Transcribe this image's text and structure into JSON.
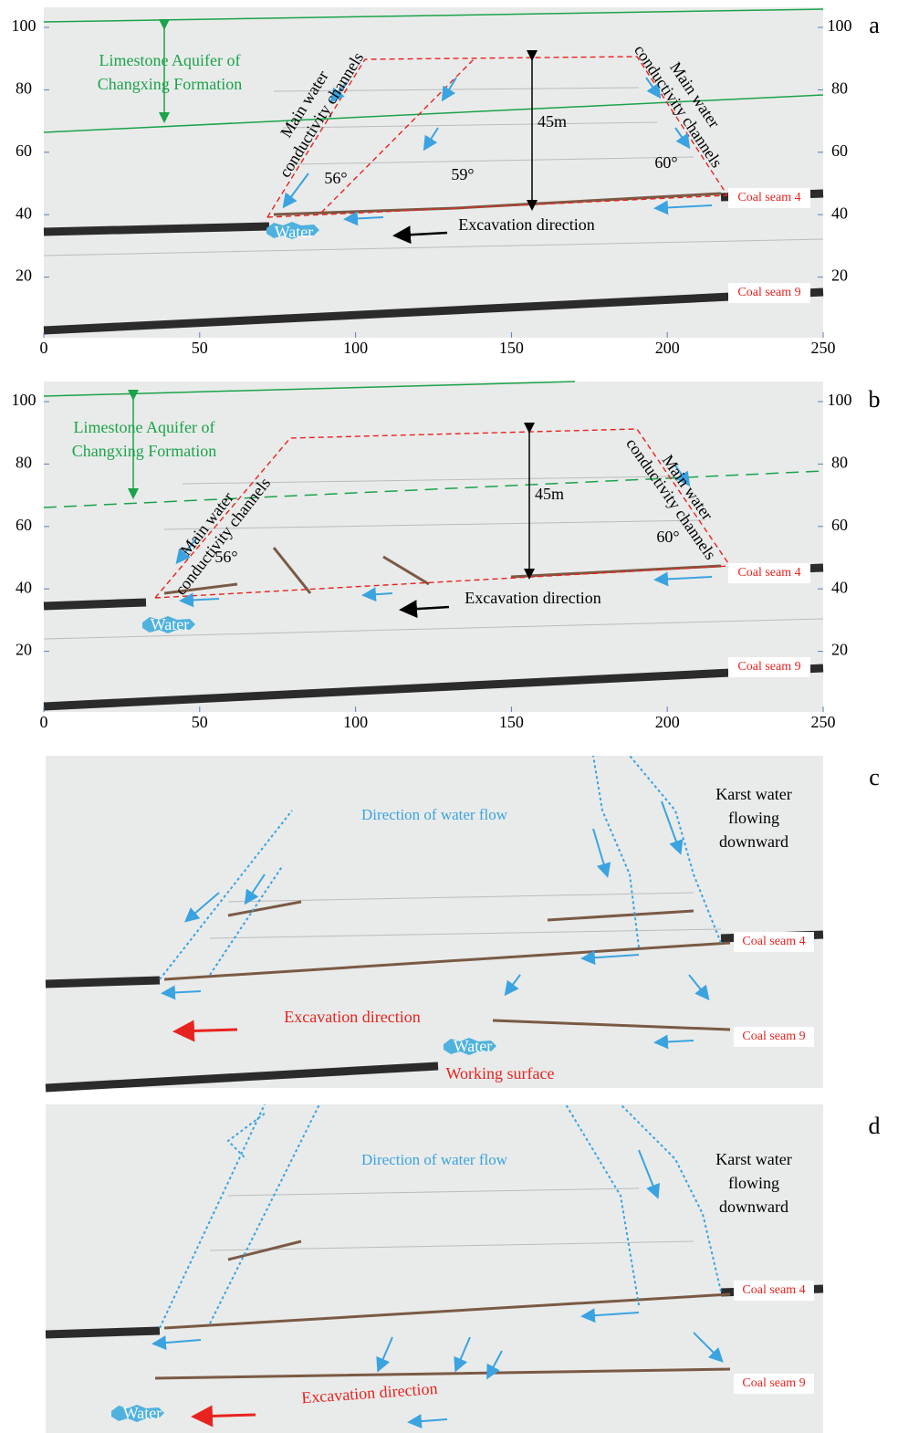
{
  "panels": [
    {
      "letter": "a",
      "x_ticks": [
        0,
        50,
        100,
        150,
        200,
        250
      ],
      "y_ticks": [
        100,
        80,
        60,
        40,
        20
      ],
      "aquifer_label": [
        "Limestone Aquifer of",
        "Changxing Formation"
      ],
      "channel_label_left": [
        "Main water",
        "conductivity channels"
      ],
      "channel_label_right": [
        "Main water",
        "conductivity channels"
      ],
      "angles": [
        "56°",
        "59°",
        "60°"
      ],
      "height": "45m",
      "excavation": "Excavation direction",
      "water": "Water",
      "coal_seam_4": "Coal seam 4",
      "coal_seam_9": "Coal seam 9"
    },
    {
      "letter": "b",
      "x_ticks": [
        0,
        50,
        100,
        150,
        200,
        250
      ],
      "y_ticks": [
        100,
        80,
        60,
        40,
        20
      ],
      "aquifer_label": [
        "Limestone Aquifer of",
        "Changxing Formation"
      ],
      "channel_label_left": [
        "Main water",
        "conductivity channels"
      ],
      "channel_label_right": [
        "Main water",
        "conductivity channels"
      ],
      "angles": [
        "56°",
        "60°"
      ],
      "height": "45m",
      "excavation": "Excavation direction",
      "water": "Water",
      "coal_seam_4": "Coal seam 4",
      "coal_seam_9": "Coal seam 9"
    },
    {
      "letter": "c",
      "flow_label": "Direction of water flow",
      "karst_label": [
        "Karst water",
        "flowing",
        "downward"
      ],
      "excavation": "Excavation direction",
      "water": "Water",
      "working_surface": "Working surface",
      "coal_seam_4": "Coal seam 4",
      "coal_seam_9": "Coal seam 9"
    },
    {
      "letter": "d",
      "flow_label": "Direction of water flow",
      "karst_label": [
        "Karst water",
        "flowing",
        "downward"
      ],
      "excavation": "Excavation direction",
      "water": "Water",
      "coal_seam_4": "Coal seam 4",
      "coal_seam_9": "Coal seam 9"
    }
  ]
}
